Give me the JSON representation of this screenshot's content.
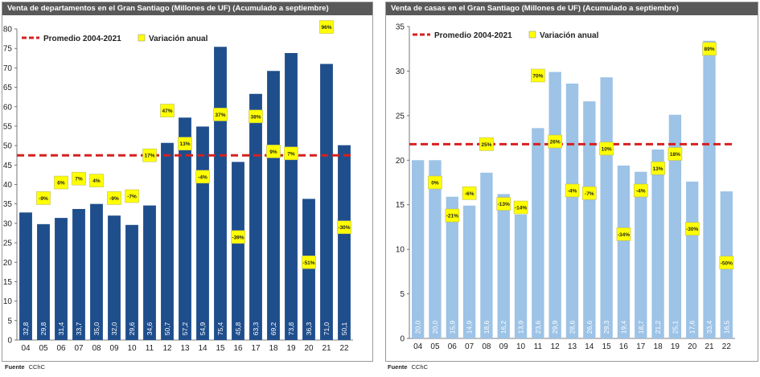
{
  "charts": [
    {
      "title": "Venta de departamentos en el Gran Santiago (Millones de UF)  (Acumulado a septiembre)",
      "source_label": "Fuente",
      "source_value": "CChC",
      "colors": {
        "bar": "#1f4e8c",
        "avg": "#d62020",
        "label_box": "#ffff00",
        "bar_text": "#ffffff"
      }
    },
    {
      "title": "Venta de casas en el Gran Santiago (Millones de UF)  (Acumulado a septiembre)",
      "source_label": "Fuente",
      "source_value": "CChC",
      "colors": {
        "bar": "#9dc3e6",
        "avg": "#d62020",
        "label_box": "#ffff00",
        "bar_text": "#ffffff"
      }
    }
  ],
  "chart_data": [
    {
      "type": "bar",
      "title": "Venta de departamentos en el Gran Santiago (Millones de UF)  (Acumulado a septiembre)",
      "categories": [
        "04",
        "05",
        "06",
        "07",
        "08",
        "09",
        "10",
        "11",
        "12",
        "13",
        "14",
        "15",
        "16",
        "17",
        "18",
        "19",
        "20",
        "21",
        "22"
      ],
      "values": [
        32.8,
        29.8,
        31.4,
        33.7,
        35.0,
        32.0,
        29.6,
        34.6,
        50.7,
        57.2,
        54.9,
        75.4,
        45.8,
        63.3,
        69.2,
        73.8,
        36.3,
        71.0,
        50.1
      ],
      "value_labels": [
        "32,8",
        "29,8",
        "31,4",
        "33,7",
        "35,0",
        "32,0",
        "29,6",
        "34,6",
        "50,7",
        "57,2",
        "54,9",
        "75,4",
        "45,8",
        "63,3",
        "69,2",
        "73,8",
        "36,3",
        "71,0",
        "50,1"
      ],
      "variation_labels": [
        "",
        "-9%",
        "6%",
        "7%",
        "4%",
        "-9%",
        "-7%",
        "17%",
        "47%",
        "13%",
        "-4%",
        "37%",
        "-39%",
        "38%",
        "9%",
        "7%",
        "-51%",
        "96%",
        "-30%"
      ],
      "variation_positions": [
        null,
        36.5,
        40.5,
        41.5,
        41,
        36.5,
        37,
        47.5,
        59,
        50.5,
        42,
        58,
        26.5,
        57.5,
        48.5,
        48,
        20,
        80.5,
        29
      ],
      "average": {
        "label": "Promedio 2004-2021",
        "value": 47.5
      },
      "variation_legend": "Variación anual",
      "ylim": [
        0,
        80
      ],
      "yticks": [
        0,
        5,
        10,
        15,
        20,
        25,
        30,
        35,
        40,
        45,
        50,
        55,
        60,
        65,
        70,
        75,
        80
      ],
      "grid": false
    },
    {
      "type": "bar",
      "title": "Venta de casas en el Gran Santiago (Millones de UF)  (Acumulado a septiembre)",
      "categories": [
        "04",
        "05",
        "06",
        "07",
        "08",
        "09",
        "10",
        "11",
        "12",
        "13",
        "14",
        "15",
        "16",
        "17",
        "18",
        "19",
        "20",
        "21",
        "22"
      ],
      "values": [
        20.0,
        20.0,
        15.9,
        14.9,
        18.6,
        16.2,
        13.9,
        23.6,
        29.9,
        28.6,
        26.6,
        29.3,
        19.4,
        18.7,
        21.2,
        25.1,
        17.6,
        33.4,
        16.5
      ],
      "value_labels": [
        "20,0",
        "20,0",
        "15,9",
        "14,9",
        "18,6",
        "16,2",
        "13,9",
        "23,6",
        "29,9",
        "28,6",
        "26,6",
        "29,3",
        "19,4",
        "18,7",
        "21,2",
        "25,1",
        "17,6",
        "33,4",
        "16,5"
      ],
      "variation_labels": [
        "",
        "0%",
        "-21%",
        "-6%",
        "25%",
        "-13%",
        "-14%",
        "70%",
        "26%",
        "-4%",
        "-7%",
        "10%",
        "-34%",
        "-4%",
        "13%",
        "18%",
        "-30%",
        "89%",
        "-50%"
      ],
      "variation_positions": [
        null,
        17.5,
        13.8,
        16.3,
        21.8,
        15.1,
        14.7,
        29.5,
        22.1,
        16.6,
        16.3,
        21.3,
        11.7,
        16.6,
        19.1,
        20.7,
        12.3,
        32.5,
        8.5
      ],
      "average": {
        "label": "Promedio 2004-2021",
        "value": 21.8
      },
      "variation_legend": "Variación anual",
      "ylim": [
        0,
        35
      ],
      "yticks": [
        0,
        5,
        10,
        15,
        20,
        25,
        30,
        35
      ],
      "grid": false
    }
  ]
}
